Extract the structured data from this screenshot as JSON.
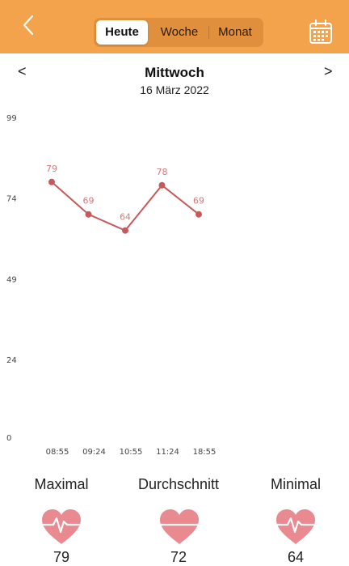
{
  "header": {
    "back_icon": "chevron-left-icon",
    "tabs": [
      "Heute",
      "Woche",
      "Monat"
    ],
    "active_tab": "Heute",
    "calendar_icon": "calendar-icon",
    "bar_color": "#f2a34c"
  },
  "day": {
    "prev": "<",
    "next": ">",
    "weekday": "Mittwoch",
    "date": "16 März 2022"
  },
  "chart_data": {
    "type": "line",
    "x": [
      "08:55",
      "09:24",
      "10:55",
      "11:24",
      "18:55"
    ],
    "values": [
      79,
      69,
      64,
      78,
      69
    ],
    "yticks": [
      99,
      74,
      49,
      24,
      0
    ],
    "ylim": [
      0,
      99
    ],
    "grid": false,
    "line_color": "#c9585a",
    "label_color": "#d47a7a"
  },
  "stats": [
    {
      "label": "Maximal",
      "value": "79",
      "icon": "heart-pulse-icon"
    },
    {
      "label": "Durchschnitt",
      "value": "72",
      "icon": "heart-line-icon"
    },
    {
      "label": "Minimal",
      "value": "64",
      "icon": "heart-pulse-icon"
    }
  ]
}
